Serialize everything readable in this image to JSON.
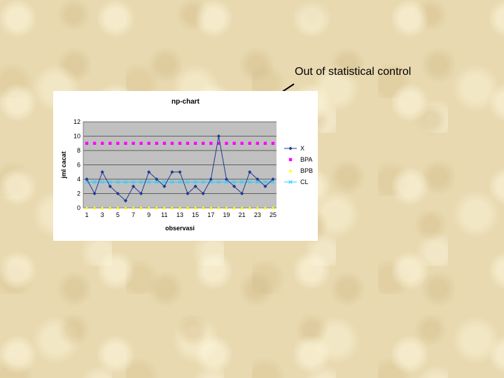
{
  "annotation": {
    "text": "Out of statistical control"
  },
  "colors": {
    "plot_bg": "#c0c0c0",
    "x": "#1f3a93",
    "bpa": "#ff00ff",
    "bpb": "#ffff00",
    "cl": "#33ccff"
  },
  "chart_data": {
    "type": "line",
    "title": "np-chart",
    "xlabel": "observasi",
    "ylabel": "jml cacat",
    "x": [
      1,
      2,
      3,
      4,
      5,
      6,
      7,
      8,
      9,
      10,
      11,
      12,
      13,
      14,
      15,
      16,
      17,
      18,
      19,
      20,
      21,
      22,
      23,
      24,
      25
    ],
    "x_tick_labels": [
      "1",
      "3",
      "5",
      "7",
      "9",
      "11",
      "13",
      "15",
      "17",
      "19",
      "21",
      "23",
      "25"
    ],
    "y_tick_labels": [
      "0",
      "2",
      "4",
      "6",
      "8",
      "10",
      "12"
    ],
    "ylim": [
      0,
      12
    ],
    "grid": "horizontal",
    "legend_position": "right",
    "series": [
      {
        "name": "X",
        "marker": "diamond",
        "line": "solid",
        "values": [
          4,
          2,
          5,
          3,
          2,
          1,
          3,
          2,
          5,
          4,
          3,
          5,
          5,
          2,
          3,
          2,
          4,
          10,
          4,
          3,
          2,
          5,
          4,
          3,
          4
        ]
      },
      {
        "name": "BPA",
        "marker": "square",
        "line": "none",
        "values": [
          9,
          9,
          9,
          9,
          9,
          9,
          9,
          9,
          9,
          9,
          9,
          9,
          9,
          9,
          9,
          9,
          9,
          9,
          9,
          9,
          9,
          9,
          9,
          9,
          9
        ]
      },
      {
        "name": "BPB",
        "marker": "triangle",
        "line": "none",
        "values": [
          0,
          0,
          0,
          0,
          0,
          0,
          0,
          0,
          0,
          0,
          0,
          0,
          0,
          0,
          0,
          0,
          0,
          0,
          0,
          0,
          0,
          0,
          0,
          0,
          0
        ]
      },
      {
        "name": "CL",
        "marker": "cross",
        "line": "solid",
        "values": [
          3.6,
          3.6,
          3.6,
          3.6,
          3.6,
          3.6,
          3.6,
          3.6,
          3.6,
          3.6,
          3.6,
          3.6,
          3.6,
          3.6,
          3.6,
          3.6,
          3.6,
          3.6,
          3.6,
          3.6,
          3.6,
          3.6,
          3.6,
          3.6,
          3.6
        ]
      }
    ]
  }
}
